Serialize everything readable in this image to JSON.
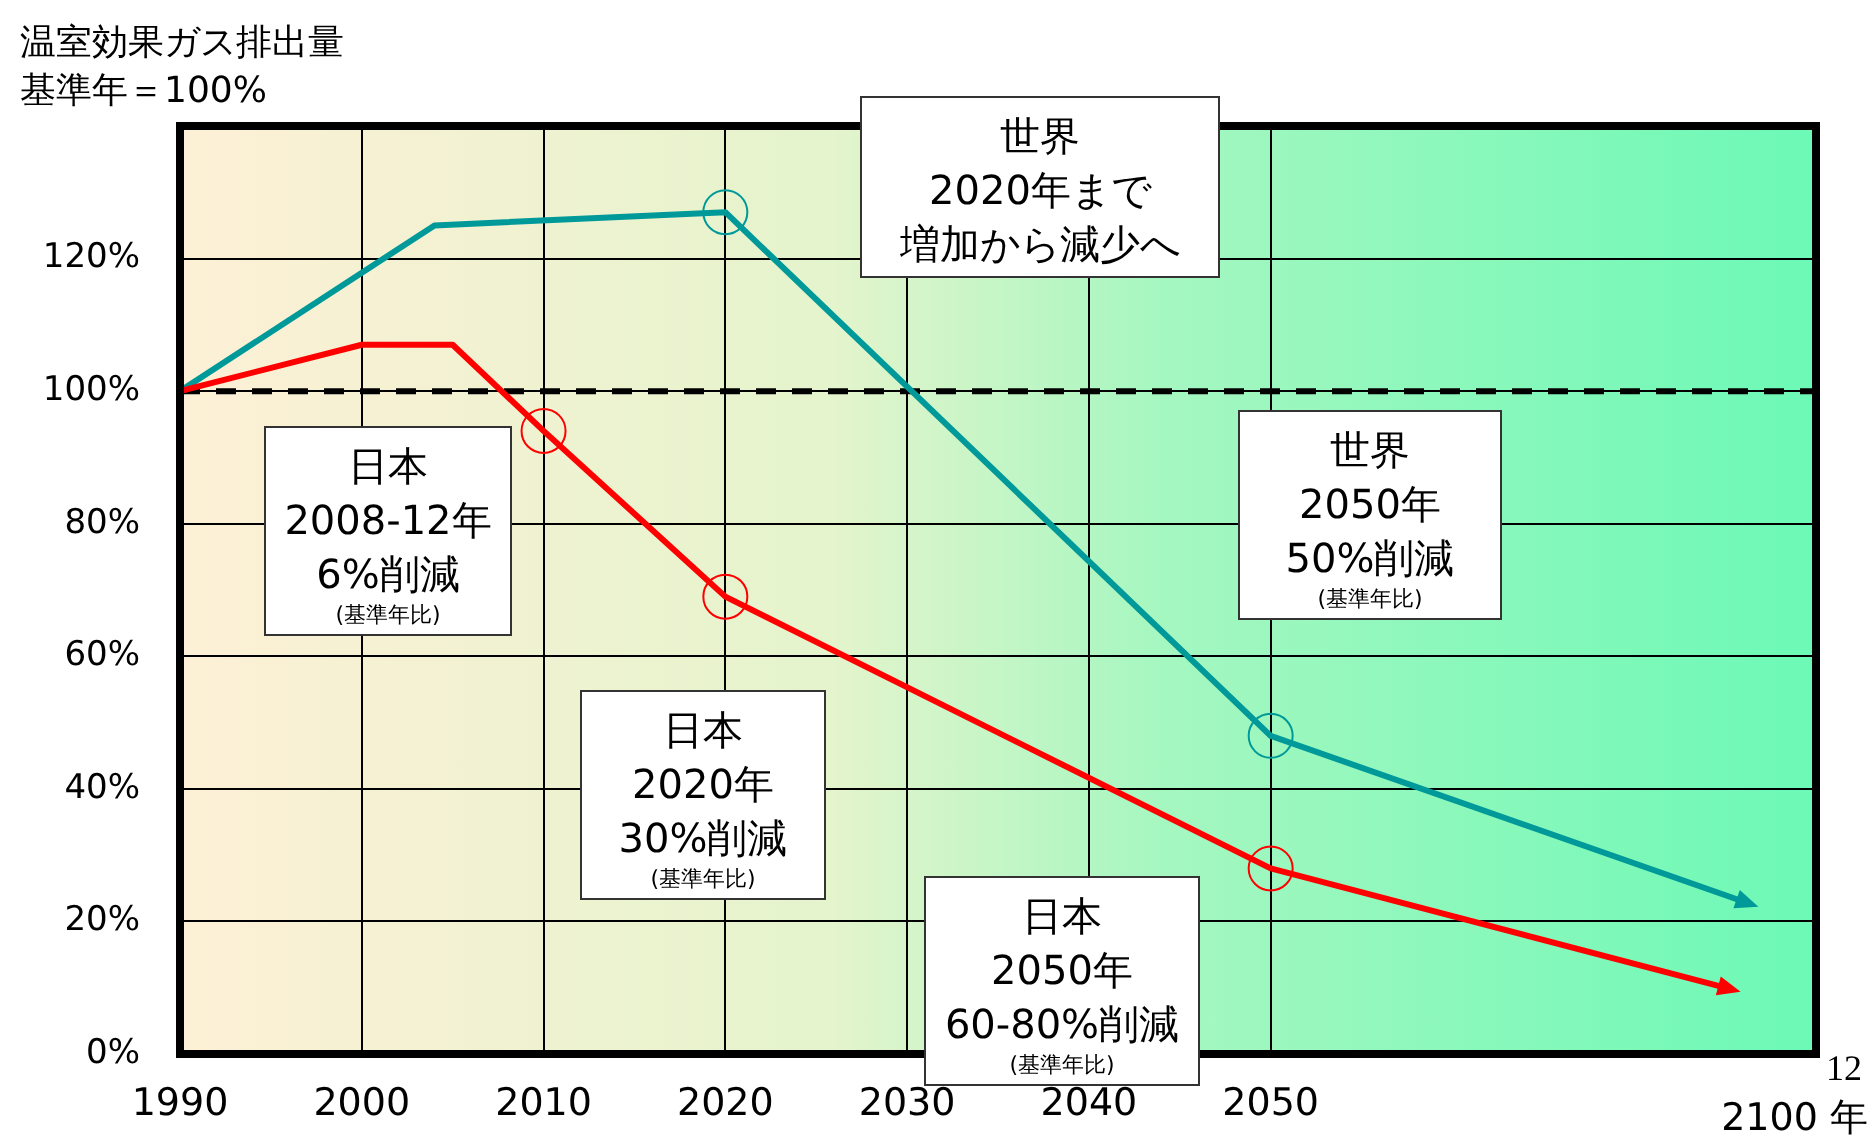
{
  "chart_data": {
    "type": "line",
    "title": "温室効果ガス排出量",
    "subtitle": "基準年＝100%",
    "xlabel": "2100 年",
    "series": [
      {
        "color": "#ff0000",
        "marker": "none",
        "x": [
          1990,
          2000,
          2005,
          2010,
          2020,
          2050,
          2075
        ],
        "values": [
          100,
          107,
          107,
          94,
          69,
          28,
          10
        ]
      },
      {
        "color": "#009999",
        "marker": "none",
        "x": [
          1990,
          2004,
          2020,
          2050,
          2076
        ],
        "values": [
          100,
          125,
          127,
          48,
          23
        ]
      },
      {
        "type": "scatter",
        "marker": "circle",
        "color": "#ff0000",
        "x": [
          2010,
          2020,
          2050
        ],
        "values": [
          94,
          69,
          28
        ]
      },
      {
        "type": "scatter",
        "marker": "circle",
        "color": "#009999",
        "x": [
          2020,
          2050
        ],
        "values": [
          127,
          48
        ]
      }
    ],
    "line_style": "solid",
    "grid": true,
    "legend": false,
    "xlim": [
      1990,
      2080
    ],
    "xticks": [
      1990,
      2000,
      2010,
      2020,
      2030,
      2040,
      2050
    ],
    "ylim": [
      0,
      140
    ],
    "yticks": [
      {
        "value": 0,
        "label": "0%"
      },
      {
        "value": 20,
        "label": "20%"
      },
      {
        "value": 40,
        "label": "40%"
      },
      {
        "value": 60,
        "label": "60%"
      },
      {
        "value": 80,
        "label": "80%"
      },
      {
        "value": 100,
        "label": "100%"
      },
      {
        "value": 120,
        "label": "120%"
      }
    ],
    "ref_lines": [
      {
        "axis": "y",
        "value": 100,
        "color": "#000000",
        "line_style": "dashed"
      }
    ],
    "annotations": [
      "世界",
      "2020年まで",
      "増加から減少へ",
      "日本",
      "2008-12年",
      "6%削減",
      "(基準年比)",
      "世界",
      "2050年",
      "50%削減",
      "(基準年比)",
      "日本",
      "2020年",
      "30%削減",
      "(基準年比)",
      "日本",
      "2050年",
      "60-80%削減",
      "(基準年比)",
      "12"
    ]
  }
}
